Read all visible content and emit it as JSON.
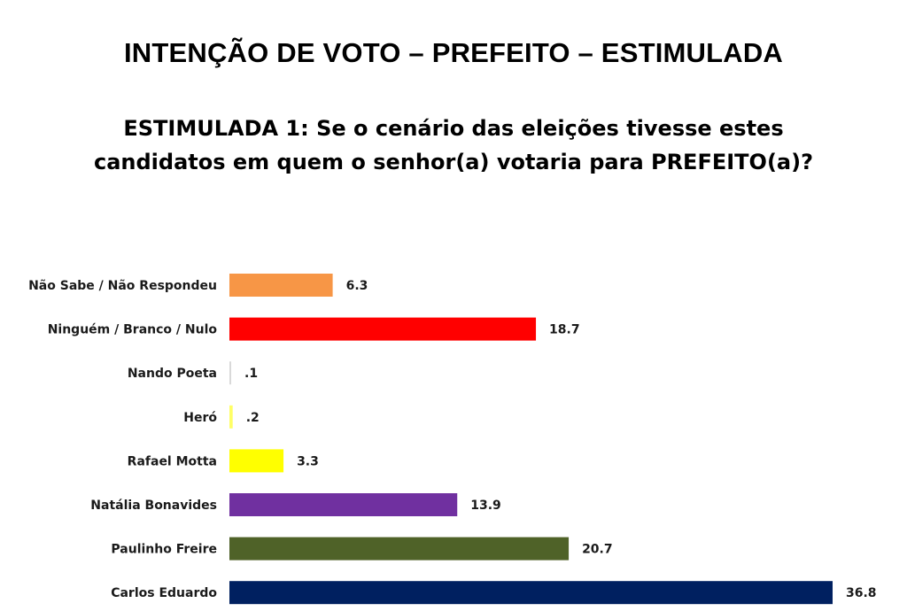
{
  "header": {
    "title": "INTENÇÃO DE VOTO – PREFEITO – ESTIMULADA",
    "subtitle_line1": "ESTIMULADA 1: Se o cenário das eleições tivesse estes",
    "subtitle_line2": "candidatos em quem o senhor(a) votaria para PREFEITO(a)?"
  },
  "chart_data": {
    "type": "bar",
    "orientation": "horizontal",
    "title": "INTENÇÃO DE VOTO – PREFEITO – ESTIMULADA",
    "xlabel": "",
    "ylabel": "",
    "xlim": [
      0,
      36.8
    ],
    "grid": false,
    "legend": "none",
    "categories": [
      "Não Sabe / Não Respondeu",
      "Ninguém / Branco / Nulo",
      "Nando Poeta",
      "Heró",
      "Rafael Motta",
      "Natália Bonavides",
      "Paulinho Freire",
      "Carlos Eduardo"
    ],
    "values": [
      6.3,
      18.7,
      0.1,
      0.2,
      3.3,
      13.9,
      20.7,
      36.8
    ],
    "value_labels": [
      "6.3",
      "18.7",
      ".1",
      ".2",
      "3.3",
      "13.9",
      "20.7",
      "36.8"
    ],
    "colors": [
      "#F79646",
      "#FF0000",
      "#D9D9D9",
      "#FFFF66",
      "#FFFF00",
      "#7030A0",
      "#4F6228",
      "#002060"
    ]
  }
}
